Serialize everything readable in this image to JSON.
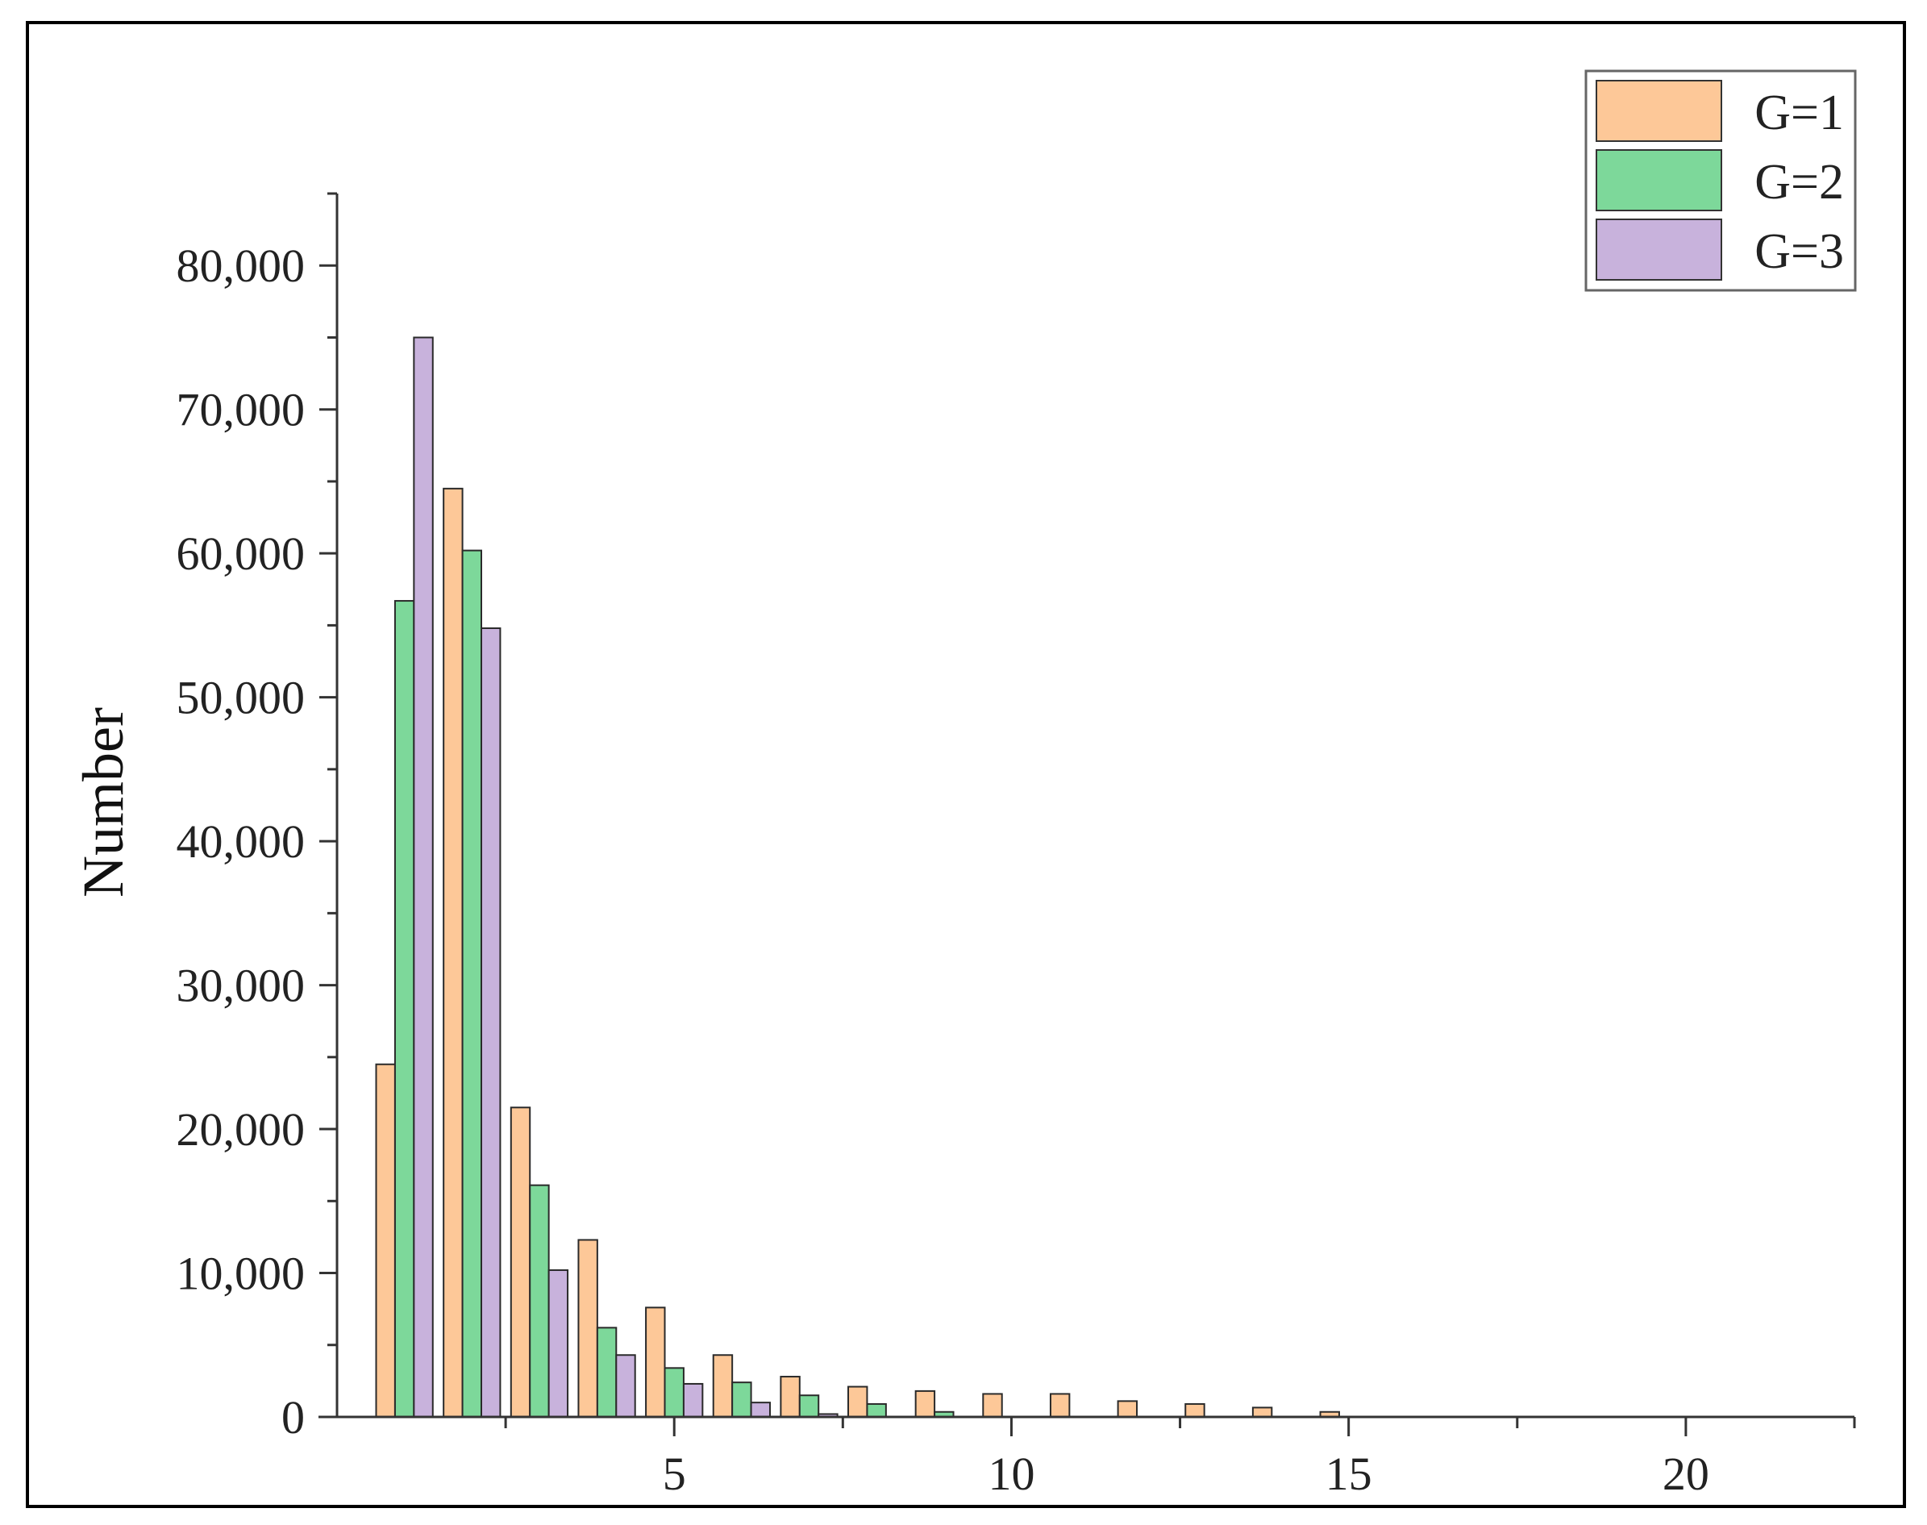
{
  "chart_data": {
    "type": "bar",
    "title": "",
    "xlabel": "",
    "ylabel": "Number",
    "xlim": [
      0,
      22.5
    ],
    "ylim": [
      0,
      85000
    ],
    "x_ticks": [
      5,
      10,
      15,
      20
    ],
    "x_tick_labels": [
      "5",
      "10",
      "15",
      "20"
    ],
    "y_ticks": [
      0,
      10000,
      20000,
      30000,
      40000,
      50000,
      60000,
      70000,
      80000
    ],
    "y_tick_labels": [
      "0",
      "10,000",
      "20,000",
      "30,000",
      "40,000",
      "50,000",
      "60,000",
      "70,000",
      "80,000"
    ],
    "x": [
      1,
      2,
      3,
      4,
      5,
      6,
      7,
      8,
      9,
      10,
      11,
      12,
      13,
      14,
      15,
      16,
      17,
      18,
      19,
      20,
      21,
      22
    ],
    "series": [
      {
        "name": "G=1",
        "color": "#fdc898",
        "values": [
          24500,
          64500,
          21500,
          12300,
          7600,
          4300,
          2800,
          2100,
          1800,
          1600,
          1600,
          1100,
          900,
          650,
          350,
          0,
          0,
          0,
          0,
          0,
          0,
          0
        ]
      },
      {
        "name": "G=2",
        "color": "#7dd89a",
        "values": [
          56700,
          60200,
          16100,
          6200,
          3400,
          2400,
          1500,
          900,
          350,
          0,
          0,
          0,
          0,
          0,
          0,
          0,
          0,
          0,
          0,
          0,
          0,
          0
        ]
      },
      {
        "name": "G=3",
        "color": "#c8b2dc",
        "values": [
          75000,
          54800,
          10200,
          4300,
          2300,
          1000,
          200,
          0,
          0,
          0,
          0,
          0,
          0,
          0,
          0,
          0,
          0,
          0,
          0,
          0,
          0,
          0
        ]
      }
    ],
    "grid": false,
    "legend_position": "top-right"
  }
}
